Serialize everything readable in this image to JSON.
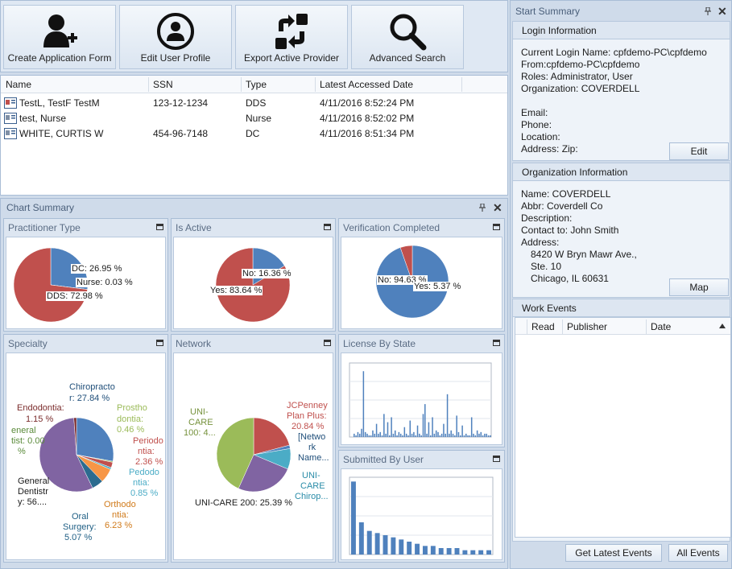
{
  "toolbar": {
    "buttons": [
      {
        "label": "Create Application Form",
        "icon": "add-user-icon"
      },
      {
        "label": "Edit User Profile",
        "icon": "user-profile-icon"
      },
      {
        "label": "Export Active Provider",
        "icon": "export-icon"
      },
      {
        "label": "Advanced Search",
        "icon": "search-icon"
      }
    ]
  },
  "grid": {
    "columns": [
      "Name",
      "SSN",
      "Type",
      "Latest Accessed Date"
    ],
    "rows": [
      {
        "name": "TestL, TestF TestM",
        "ssn": "123-12-1234",
        "type": "DDS",
        "date": "4/11/2016 8:52:24 PM"
      },
      {
        "name": "test, Nurse",
        "ssn": "",
        "type": "Nurse",
        "date": "4/11/2016 8:52:02 PM"
      },
      {
        "name": "WHITE, CURTIS W",
        "ssn": "454-96-7148",
        "type": "DC",
        "date": "4/11/2016 8:51:34 PM"
      }
    ]
  },
  "chart_summary": {
    "title": "Chart Summary",
    "panels": {
      "practitioner_type": "Practitioner Type",
      "is_active": "Is Active",
      "verification": "Verification Completed",
      "specialty": "Specialty",
      "network": "Network",
      "license_by_state": "License By State",
      "submitted_by_user": "Submitted By User"
    }
  },
  "chart_labels": {
    "pt_dc": "DC: 26.95 %",
    "pt_nurse": "Nurse: 0.03 %",
    "pt_dds": "DDS: 72.98 %",
    "ia_no": "No: 16.36 %",
    "ia_yes": "Yes: 83.64 %",
    "vc_no": "No: 94.63 %",
    "vc_yes": "Yes: 5.37 %",
    "sp_chiro_1": "Chiropracto",
    "sp_chiro_2": "r: 27.84 %",
    "sp_prosth_1": "Prostho",
    "sp_prosth_2": "dontia:",
    "sp_prosth_3": "0.46 %",
    "sp_perio_1": "Periodo",
    "sp_perio_2": "ntia:",
    "sp_perio_3": "2.36 %",
    "sp_pedo_1": "Pedodo",
    "sp_pedo_2": "ntia:",
    "sp_pedo_3": "0.85 %",
    "sp_ortho_1": "Orthodo",
    "sp_ortho_2": "ntia:",
    "sp_ortho_3": "6.23 %",
    "sp_oral_1": "Oral",
    "sp_oral_2": "Surgery:",
    "sp_oral_3": "5.07 %",
    "sp_gen_1": "General",
    "sp_gen_2": "Dentistr",
    "sp_gen_3": "y: 56....",
    "sp_endo_1": "Endodontia:",
    "sp_endo_2": "1.15 %",
    "sp_gt_1": "eneral",
    "sp_gt_2": "tist: 0.00",
    "sp_gt_3": "%",
    "nw_uc100_1": "UNI-",
    "nw_uc100_2": "CARE",
    "nw_uc100_3": "100: 4...",
    "nw_jcp_1": "JCPenney",
    "nw_jcp_2": "Plan Plus:",
    "nw_jcp_3": "20.84 %",
    "nw_net_1": "[Netwo",
    "nw_net_2": "rk",
    "nw_net_3": "Name...",
    "nw_ucc_1": "UNI-",
    "nw_ucc_2": "CARE",
    "nw_ucc_3": "Chirop...",
    "nw_uc200": "UNI-CARE 200: 25.39 %"
  },
  "chart_data": [
    {
      "type": "pie",
      "title": "Practitioner Type",
      "categories": [
        "DC",
        "Nurse",
        "DDS"
      ],
      "values": [
        26.95,
        0.03,
        72.98
      ],
      "colors": [
        "#4f81bd",
        "#8064a2",
        "#c0504d"
      ]
    },
    {
      "type": "pie",
      "title": "Is Active",
      "categories": [
        "No",
        "Yes"
      ],
      "values": [
        16.36,
        83.64
      ],
      "colors": [
        "#4f81bd",
        "#c0504d"
      ]
    },
    {
      "type": "pie",
      "title": "Verification Completed",
      "categories": [
        "No",
        "Yes"
      ],
      "values": [
        94.63,
        5.37
      ],
      "colors": [
        "#4f81bd",
        "#c0504d"
      ]
    },
    {
      "type": "pie",
      "title": "Specialty",
      "categories": [
        "Chiropractor",
        "Prosthodontia",
        "Periodontia",
        "Pedodontia",
        "Orthodontia",
        "Oral Surgery",
        "General Dentistry",
        "General Dentist",
        "Endodontia"
      ],
      "values": [
        27.84,
        0.46,
        2.36,
        0.85,
        6.23,
        5.07,
        56.0,
        0.0,
        1.15
      ],
      "colors": [
        "#4f81bd",
        "#9bbb59",
        "#c0504d",
        "#4bacc6",
        "#f79646",
        "#2c6b8f",
        "#8064a2",
        "#5a8a3a",
        "#7b2c2c"
      ]
    },
    {
      "type": "pie",
      "title": "Network",
      "categories": [
        "JCPenney Plan Plus",
        "[Network Name...]",
        "UNI-CARE Chiropractic",
        "UNI-CARE 200",
        "UNI-CARE 100"
      ],
      "values": [
        20.84,
        1.5,
        9.0,
        25.39,
        43.27
      ],
      "colors": [
        "#c0504d",
        "#4f81bd",
        "#4bacc6",
        "#8064a2",
        "#9bbb59"
      ]
    },
    {
      "type": "bar",
      "title": "License By State",
      "values": [
        0,
        0,
        2,
        1,
        3,
        2,
        5,
        40,
        3,
        2,
        1,
        1,
        4,
        2,
        8,
        2,
        3,
        1,
        14,
        2,
        9,
        1,
        12,
        2,
        4,
        1,
        3,
        2,
        1,
        6,
        2,
        1,
        10,
        2,
        3,
        1,
        7,
        2,
        1,
        14,
        20,
        2,
        9,
        1,
        12,
        2,
        4,
        3,
        1,
        2,
        8,
        2,
        26,
        2,
        4,
        2,
        1,
        13,
        3,
        1,
        7,
        1,
        2,
        1,
        1,
        12,
        2,
        1,
        4,
        2,
        3,
        1,
        2,
        2,
        1,
        1
      ],
      "ylim": [
        0,
        45
      ],
      "colors": [
        "#4f81bd"
      ]
    },
    {
      "type": "bar",
      "title": "Submitted By User",
      "values": [
        34,
        15,
        11,
        10,
        9,
        8,
        7,
        6,
        5,
        4,
        4,
        3,
        3,
        3,
        2,
        2,
        2,
        2
      ],
      "ylim": [
        0,
        36
      ],
      "colors": [
        "#4f81bd"
      ]
    }
  ],
  "start_summary": {
    "title": "Start Summary",
    "login": {
      "header": "Login Information",
      "lines": [
        "Current Login Name: cpfdemo-PC\\cpfdemo",
        "From:cpfdemo-PC\\cpfdemo",
        "Roles: Administrator, User",
        "Organization: COVERDELL",
        "",
        "Email:",
        "Phone:",
        "Location:",
        "Address:  Zip:"
      ],
      "edit_label": "Edit"
    },
    "org": {
      "header": "Organization Information",
      "lines": [
        "Name: COVERDELL",
        "Abbr: Coverdell  Co",
        "Description:",
        "Contact to: John Smith",
        "Address:"
      ],
      "address_lines": [
        "8420 W Bryn Mawr Ave.,",
        "Ste. 10",
        "Chicago, IL 60631"
      ],
      "map_label": "Map"
    },
    "work_events": {
      "header": "Work Events",
      "columns": [
        "Read",
        "Publisher",
        "Date"
      ],
      "get_latest_label": "Get Latest Events",
      "all_events_label": "All Events"
    }
  }
}
